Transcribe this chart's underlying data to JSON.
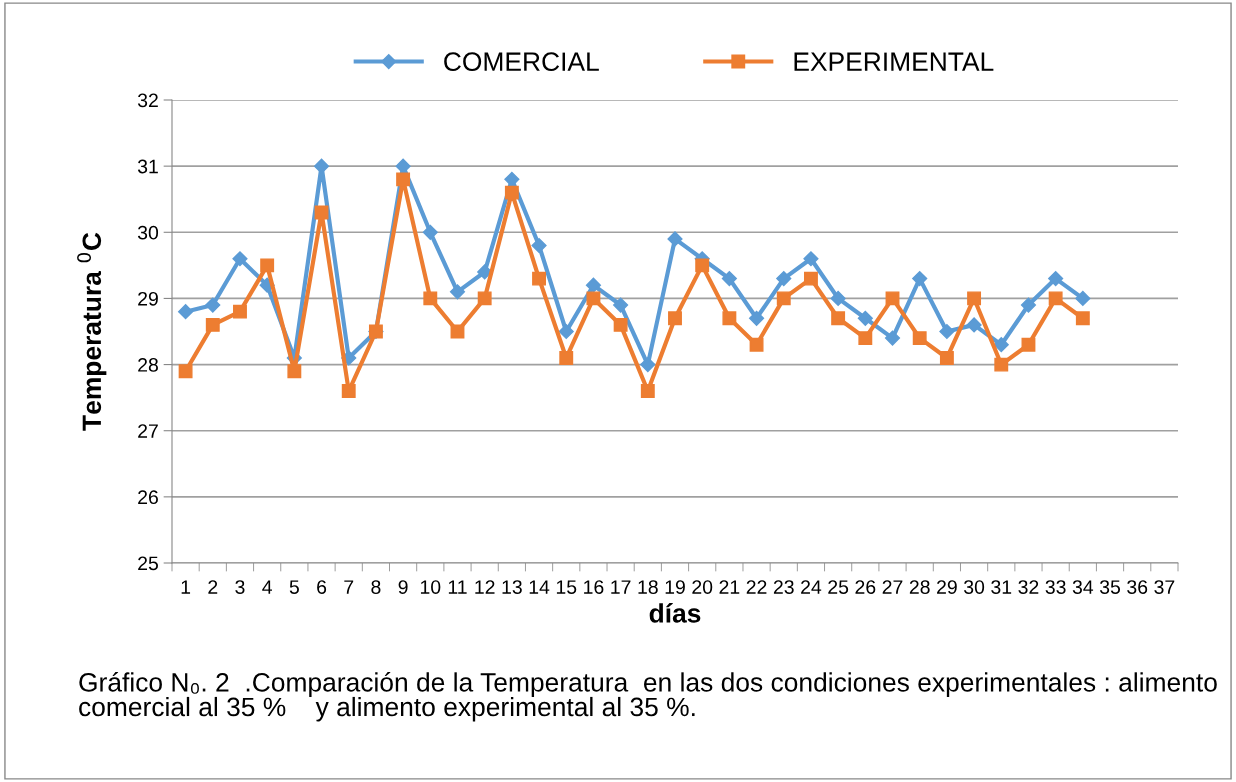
{
  "chart_data": {
    "type": "line",
    "xlabel": "días",
    "ylabel": "Temperatura $^{0}$C",
    "categories": [
      "1",
      "2",
      "3",
      "4",
      "5",
      "6",
      "7",
      "8",
      "9",
      "10",
      "11",
      "12",
      "13",
      "14",
      "15",
      "16",
      "17",
      "18",
      "19",
      "20",
      "21",
      "22",
      "23",
      "24",
      "25",
      "26",
      "27",
      "28",
      "29",
      "30",
      "31",
      "32",
      "33",
      "34",
      "35",
      "36",
      "37"
    ],
    "series": [
      {
        "name": "COMERCIAL",
        "color": "#5b9bd5",
        "marker": "diamond",
        "values": [
          28.8,
          28.9,
          29.6,
          29.2,
          28.1,
          31.0,
          28.1,
          28.5,
          31.0,
          30.0,
          29.1,
          29.4,
          30.8,
          29.8,
          28.5,
          29.2,
          28.9,
          28.0,
          29.9,
          29.6,
          29.3,
          28.7,
          29.3,
          29.6,
          29.0,
          28.7,
          28.4,
          29.3,
          28.5,
          28.6,
          28.3,
          28.9,
          29.3,
          29.0,
          null,
          null,
          null
        ]
      },
      {
        "name": "EXPERIMENTAL",
        "color": "#ed7d31",
        "marker": "square",
        "values": [
          27.9,
          28.6,
          28.8,
          29.5,
          27.9,
          30.3,
          27.6,
          28.5,
          30.8,
          29.0,
          28.5,
          29.0,
          30.6,
          29.3,
          28.1,
          29.0,
          28.6,
          27.6,
          28.7,
          29.5,
          28.7,
          28.3,
          29.0,
          29.3,
          28.7,
          28.4,
          29.0,
          28.4,
          28.1,
          29.0,
          28.0,
          28.3,
          29.0,
          28.7,
          null,
          null,
          null
        ]
      }
    ],
    "ylim": [
      25,
      32
    ],
    "yticks": [
      25,
      26,
      27,
      28,
      29,
      30,
      31,
      32
    ],
    "grid": "y",
    "legend": "top",
    "annotations": [
      "Gráfico N₀. 2  .Comparación de la Temperatura  en las dos condiciones experimentales : alimento comercial al 35 %    y alimento experimental al 35 %."
    ]
  }
}
